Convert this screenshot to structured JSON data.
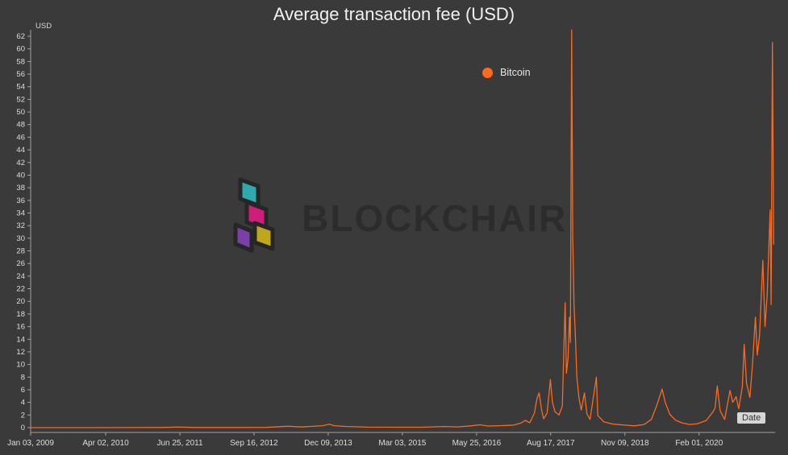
{
  "page": {
    "background": "#3a3a3a"
  },
  "chart_data": {
    "type": "line",
    "title": "Average transaction fee (USD)",
    "ylabel": "USD",
    "xlabel": "Date",
    "grid": false,
    "legend_position": "top-center",
    "ylim": [
      0,
      62
    ],
    "ytick_step": 2,
    "yticks": [
      0,
      2,
      4,
      6,
      8,
      10,
      12,
      14,
      16,
      18,
      20,
      22,
      24,
      26,
      28,
      30,
      32,
      34,
      36,
      38,
      40,
      42,
      44,
      46,
      48,
      50,
      52,
      54,
      56,
      58,
      60,
      62
    ],
    "x_domain": [
      "2009-01-03",
      "2021-05-06"
    ],
    "xticks": [
      {
        "label": "Jan 03, 2009",
        "date": "2009-01-03"
      },
      {
        "label": "Apr 02, 2010",
        "date": "2010-04-02"
      },
      {
        "label": "Jun 25, 2011",
        "date": "2011-06-25"
      },
      {
        "label": "Sep 16, 2012",
        "date": "2012-09-16"
      },
      {
        "label": "Dec 09, 2013",
        "date": "2013-12-09"
      },
      {
        "label": "Mar 03, 2015",
        "date": "2015-03-03"
      },
      {
        "label": "May 25, 2016",
        "date": "2016-05-25"
      },
      {
        "label": "Aug 17, 2017",
        "date": "2017-08-17"
      },
      {
        "label": "Nov 09, 2018",
        "date": "2018-11-09"
      },
      {
        "label": "Feb 01, 2020",
        "date": "2020-02-01"
      }
    ],
    "series": [
      {
        "name": "Bitcoin",
        "color": "#fb6a1e",
        "points": [
          [
            "2009-01-03",
            0.0
          ],
          [
            "2009-06-01",
            0.0
          ],
          [
            "2010-02-01",
            0.0
          ],
          [
            "2010-09-01",
            0.01
          ],
          [
            "2011-03-01",
            0.02
          ],
          [
            "2011-06-10",
            0.09
          ],
          [
            "2011-10-01",
            0.03
          ],
          [
            "2012-05-01",
            0.02
          ],
          [
            "2012-12-01",
            0.04
          ],
          [
            "2013-04-10",
            0.22
          ],
          [
            "2013-07-01",
            0.1
          ],
          [
            "2013-11-05",
            0.3
          ],
          [
            "2013-12-17",
            0.55
          ],
          [
            "2014-01-15",
            0.3
          ],
          [
            "2014-04-01",
            0.18
          ],
          [
            "2014-08-01",
            0.08
          ],
          [
            "2015-01-15",
            0.07
          ],
          [
            "2015-07-01",
            0.06
          ],
          [
            "2015-11-10",
            0.18
          ],
          [
            "2016-02-01",
            0.12
          ],
          [
            "2016-04-20",
            0.28
          ],
          [
            "2016-06-15",
            0.45
          ],
          [
            "2016-08-01",
            0.25
          ],
          [
            "2016-10-15",
            0.3
          ],
          [
            "2017-01-05",
            0.4
          ],
          [
            "2017-02-20",
            0.75
          ],
          [
            "2017-03-15",
            1.15
          ],
          [
            "2017-04-12",
            0.75
          ],
          [
            "2017-05-10",
            2.3
          ],
          [
            "2017-05-26",
            4.6
          ],
          [
            "2017-06-08",
            5.5
          ],
          [
            "2017-06-21",
            3.0
          ],
          [
            "2017-07-05",
            1.4
          ],
          [
            "2017-07-26",
            2.3
          ],
          [
            "2017-08-15",
            7.6
          ],
          [
            "2017-08-27",
            4.0
          ],
          [
            "2017-09-12",
            2.5
          ],
          [
            "2017-10-06",
            2.0
          ],
          [
            "2017-10-26",
            3.4
          ],
          [
            "2017-11-12",
            19.8
          ],
          [
            "2017-11-20",
            8.6
          ],
          [
            "2017-11-30",
            11.0
          ],
          [
            "2017-12-08",
            17.5
          ],
          [
            "2017-12-14",
            13.5
          ],
          [
            "2017-12-22",
            63.0
          ],
          [
            "2017-12-28",
            30.0
          ],
          [
            "2018-01-05",
            19.5
          ],
          [
            "2018-01-13",
            14.5
          ],
          [
            "2018-01-22",
            8.0
          ],
          [
            "2018-02-04",
            4.6
          ],
          [
            "2018-02-18",
            2.8
          ],
          [
            "2018-03-09",
            5.5
          ],
          [
            "2018-03-24",
            2.2
          ],
          [
            "2018-04-12",
            1.3
          ],
          [
            "2018-05-20",
            8.0
          ],
          [
            "2018-05-29",
            1.9
          ],
          [
            "2018-07-05",
            0.9
          ],
          [
            "2018-09-01",
            0.55
          ],
          [
            "2018-11-09",
            0.4
          ],
          [
            "2019-01-05",
            0.28
          ],
          [
            "2019-03-05",
            0.5
          ],
          [
            "2019-04-18",
            1.3
          ],
          [
            "2019-05-22",
            3.6
          ],
          [
            "2019-06-22",
            6.1
          ],
          [
            "2019-07-12",
            3.9
          ],
          [
            "2019-08-08",
            2.1
          ],
          [
            "2019-09-10",
            1.2
          ],
          [
            "2019-10-20",
            0.75
          ],
          [
            "2019-12-05",
            0.5
          ],
          [
            "2020-01-20",
            0.6
          ],
          [
            "2020-03-14",
            1.1
          ],
          [
            "2020-04-22",
            2.4
          ],
          [
            "2020-05-08",
            3.1
          ],
          [
            "2020-05-21",
            6.6
          ],
          [
            "2020-06-07",
            2.7
          ],
          [
            "2020-07-05",
            1.3
          ],
          [
            "2020-08-06",
            5.9
          ],
          [
            "2020-08-22",
            4.0
          ],
          [
            "2020-09-12",
            4.9
          ],
          [
            "2020-09-28",
            3.0
          ],
          [
            "2020-10-20",
            6.5
          ],
          [
            "2020-10-31",
            13.2
          ],
          [
            "2020-11-14",
            7.0
          ],
          [
            "2020-12-04",
            4.8
          ],
          [
            "2020-12-19",
            9.5
          ],
          [
            "2021-01-07",
            17.5
          ],
          [
            "2021-01-18",
            11.5
          ],
          [
            "2021-02-01",
            14.5
          ],
          [
            "2021-02-21",
            26.5
          ],
          [
            "2021-03-06",
            16.0
          ],
          [
            "2021-03-19",
            21.0
          ],
          [
            "2021-04-06",
            34.5
          ],
          [
            "2021-04-12",
            19.5
          ],
          [
            "2021-04-20",
            61.0
          ],
          [
            "2021-04-27",
            29.0
          ]
        ]
      }
    ]
  },
  "axis": {
    "line_color": "#a0a0a0",
    "label_color": "#dddddd"
  },
  "legend": {
    "marker": "circle"
  },
  "watermark": {
    "text": "BLOCKCHAIR",
    "colors": {
      "teal": "#2fa9ad",
      "magenta": "#cf1d7c",
      "purple": "#7b3fa9",
      "yellow": "#bfa61c",
      "outline": "#262626",
      "text": "#2c2c2c"
    }
  }
}
